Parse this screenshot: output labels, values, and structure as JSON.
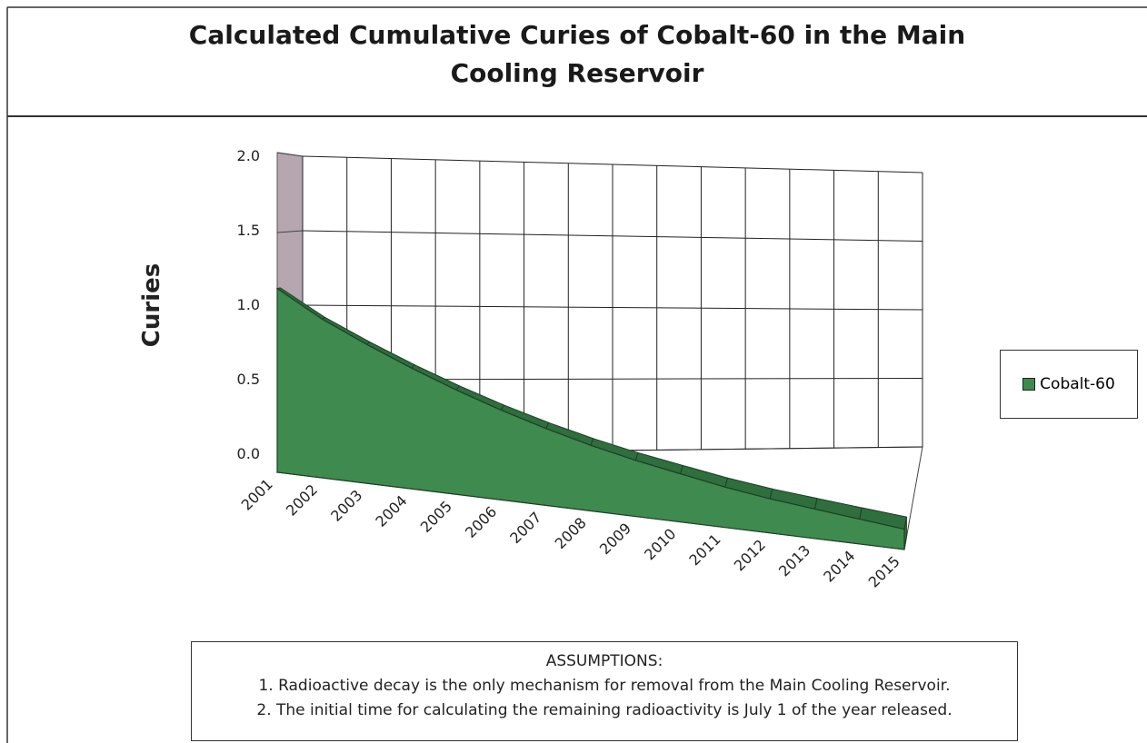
{
  "chart_data": {
    "type": "area3d",
    "title": "Calculated Cumulative Curies of  Cobalt-60 in the Main Cooling Reservoir",
    "y_label": "Curies",
    "categories": [
      "2001",
      "2002",
      "2003",
      "2004",
      "2005",
      "2006",
      "2007",
      "2008",
      "2009",
      "2010",
      "2011",
      "2012",
      "2013",
      "2014",
      "2015"
    ],
    "series": [
      {
        "name": "Cobalt-60",
        "color": "#3e8a4f",
        "values": [
          1.15,
          1.0,
          0.88,
          0.77,
          0.67,
          0.58,
          0.5,
          0.43,
          0.37,
          0.32,
          0.27,
          0.23,
          0.2,
          0.17,
          0.14
        ]
      }
    ],
    "ylim": [
      0,
      2
    ],
    "yticks": [
      {
        "value": 0,
        "label": "0.0"
      },
      {
        "value": 0.5,
        "label": "0.5"
      },
      {
        "value": 1,
        "label": "1.0"
      },
      {
        "value": 1.5,
        "label": "1.5"
      },
      {
        "value": 2,
        "label": "2.0"
      }
    ],
    "grid": true,
    "wall_color": "#b5a6b0",
    "legend": "right"
  },
  "assumptions": {
    "heading": "ASSUMPTIONS:",
    "items": [
      "1. Radioactive decay is the only mechanism for removal from the Main Cooling Reservoir.",
      "2. The initial time for calculating the remaining radioactivity is July 1 of the year released."
    ]
  }
}
